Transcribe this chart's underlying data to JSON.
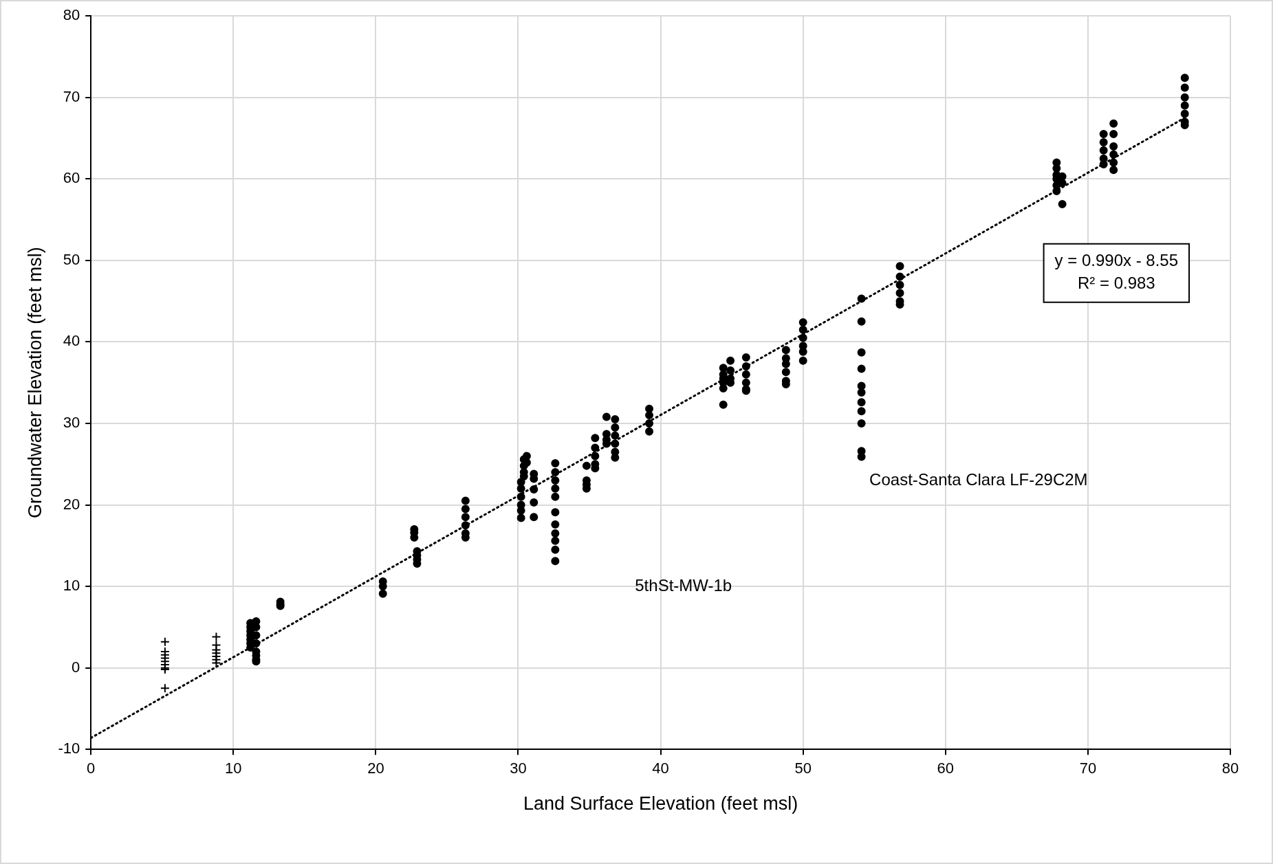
{
  "chart_data": {
    "type": "scatter",
    "xlabel": "Land Surface Elevation (feet msl)",
    "ylabel": "Groundwater Elevation (feet msl)",
    "xlim": [
      0,
      80
    ],
    "xticks": [
      0,
      10,
      20,
      30,
      40,
      50,
      60,
      70,
      80
    ],
    "ylim": [
      -10,
      80
    ],
    "yticks": [
      -10,
      0,
      10,
      20,
      30,
      40,
      50,
      60,
      70,
      80
    ],
    "grid": true,
    "legend": false,
    "annotations": [
      "y = 0.990x - 8.55",
      "R² = 0.983",
      "5thSt-MW-1b",
      "Coast-Santa Clara LF-29C2M"
    ],
    "series": [
      {
        "type": "scatter",
        "marker": "cross",
        "color": "#000000",
        "x": [
          5.2,
          5.2,
          5.2,
          5.2,
          5.2,
          5.2,
          5.2,
          5.2,
          5.2,
          8.8,
          8.8,
          8.8,
          8.8,
          8.8,
          8.8,
          8.8
        ],
        "values": [
          3.2,
          2.0,
          1.6,
          1.2,
          0.8,
          0.4,
          0.0,
          -0.2,
          -2.5,
          3.8,
          2.8,
          2.2,
          1.8,
          1.4,
          1.0,
          0.6
        ]
      },
      {
        "type": "scatter",
        "marker": "circle",
        "color": "#000000",
        "x": [
          11.2,
          11.2,
          11.2,
          11.2,
          11.2,
          11.2,
          11.2,
          11.6,
          11.6,
          11.6,
          11.6,
          11.6,
          11.6,
          11.6,
          11.6,
          13.3,
          13.3,
          13.3,
          20.5,
          20.5,
          20.5,
          22.7,
          22.7,
          22.7,
          22.9,
          22.9,
          22.9,
          22.9,
          26.3,
          26.3,
          26.3,
          26.3,
          26.3,
          26.3,
          30.2,
          30.2,
          30.2,
          30.2,
          30.2,
          30.2,
          30.4,
          30.4,
          30.4,
          30.4,
          30.6,
          30.6,
          31.1,
          31.1,
          31.1,
          31.1,
          31.1,
          32.6,
          32.6,
          32.6,
          32.6,
          32.6,
          32.6,
          32.6,
          32.6,
          32.6,
          32.6,
          32.6,
          34.8,
          34.8,
          34.8,
          34.8,
          35.4,
          35.4,
          35.4,
          35.4,
          35.4,
          36.2,
          36.2,
          36.2,
          36.2,
          36.8,
          36.8,
          36.8,
          36.8,
          36.8,
          36.8,
          39.2,
          39.2,
          39.2,
          39.2,
          44.4,
          44.4,
          44.4,
          44.4,
          44.4,
          44.4,
          44.9,
          44.9,
          44.9,
          44.9,
          46.0,
          46.0,
          46.0,
          46.0,
          46.0,
          46.0,
          48.8,
          48.8,
          48.8,
          48.8,
          48.8,
          48.8,
          50.0,
          50.0,
          50.0,
          50.0,
          50.0,
          50.0,
          54.1,
          54.1,
          54.1,
          54.1,
          54.1,
          54.1,
          54.1,
          54.1,
          54.1,
          54.1,
          54.1,
          56.8,
          56.8,
          56.8,
          56.8,
          56.8,
          56.8,
          67.8,
          67.8,
          67.8,
          67.8,
          67.8,
          67.8,
          68.2,
          68.2,
          68.2,
          71.1,
          71.1,
          71.1,
          71.1,
          71.1,
          71.8,
          71.8,
          71.8,
          71.8,
          71.8,
          71.8,
          76.8,
          76.8,
          76.8,
          76.8,
          76.8,
          76.8,
          76.8
        ],
        "values": [
          5.5,
          5.0,
          4.5,
          4.0,
          3.5,
          3.0,
          2.5,
          5.7,
          5.0,
          4.0,
          3.0,
          2.0,
          1.5,
          1.0,
          0.8,
          7.6,
          7.8,
          8.1,
          10.6,
          10.0,
          9.1,
          17.0,
          16.6,
          16.0,
          14.3,
          13.8,
          13.3,
          12.8,
          20.5,
          19.5,
          18.5,
          17.5,
          16.5,
          16.0,
          22.8,
          22.0,
          21.0,
          20.0,
          19.3,
          18.4,
          25.6,
          24.8,
          24.0,
          23.5,
          26.0,
          25.2,
          23.8,
          23.2,
          21.9,
          20.3,
          18.5,
          25.1,
          24.0,
          23.0,
          22.0,
          21.0,
          19.1,
          17.6,
          16.5,
          15.6,
          14.5,
          13.1,
          24.8,
          23.0,
          22.5,
          22.0,
          28.2,
          27.0,
          26.0,
          25.0,
          24.5,
          30.8,
          28.7,
          28.0,
          27.5,
          30.5,
          29.5,
          28.5,
          27.5,
          26.5,
          25.8,
          31.8,
          31.0,
          30.0,
          29.0,
          36.8,
          36.0,
          35.5,
          35.0,
          34.3,
          32.3,
          37.7,
          36.5,
          35.5,
          35.0,
          38.1,
          37.0,
          36.0,
          35.0,
          34.2,
          34.0,
          39.0,
          38.0,
          37.3,
          36.3,
          35.2,
          34.8,
          42.4,
          41.5,
          40.5,
          39.5,
          38.8,
          37.7,
          45.3,
          42.5,
          38.7,
          36.7,
          34.6,
          33.8,
          32.6,
          31.5,
          30.0,
          26.6,
          25.9,
          49.3,
          48.0,
          47.0,
          46.0,
          45.0,
          44.6,
          62.0,
          61.3,
          60.5,
          60.0,
          59.2,
          58.5,
          60.3,
          59.5,
          56.9,
          65.5,
          64.5,
          63.5,
          62.5,
          61.8,
          66.8,
          65.5,
          64.0,
          63.0,
          62.0,
          61.1,
          72.4,
          71.2,
          70.0,
          69.0,
          68.0,
          67.0,
          66.6
        ]
      },
      {
        "type": "line",
        "marker": "none",
        "line_style": "dotted",
        "color": "#000000",
        "x": [
          0,
          76.8
        ],
        "values": [
          -8.6,
          67.5
        ]
      }
    ]
  }
}
